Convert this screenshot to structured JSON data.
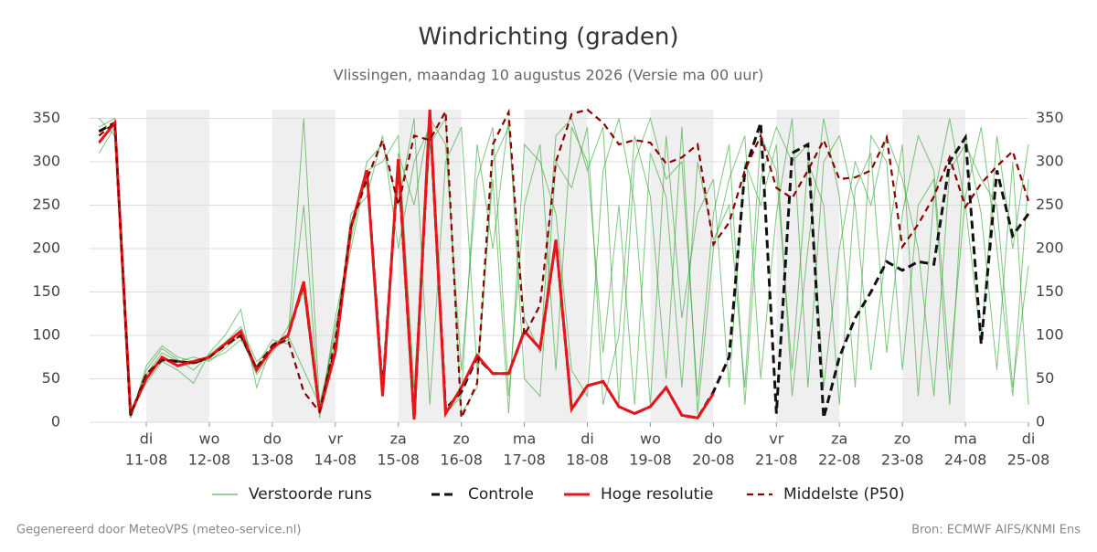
{
  "chart_data": {
    "type": "line",
    "title": "Windrichting (graden)",
    "subtitle": "Vlissingen, maandag 10 augustus 2026 (Versie ma 00 uur)",
    "footer_left": "Gegenereerd door MeteoVPS (meteo-service.nl)",
    "footer_right": "Bron: ECMWF AIFS/KNMI Ens",
    "xlim": [
      0.1,
      15
    ],
    "xticks": [
      {
        "value": 1,
        "label": "11-08"
      },
      {
        "value": 2,
        "label": "12-08"
      },
      {
        "value": 3,
        "label": "13-08"
      },
      {
        "value": 4,
        "label": "14-08"
      },
      {
        "value": 5,
        "label": "15-08"
      },
      {
        "value": 6,
        "label": "16-08"
      },
      {
        "value": 7,
        "label": "17-08"
      },
      {
        "value": 8,
        "label": "18-08"
      },
      {
        "value": 9,
        "label": "19-08"
      },
      {
        "value": 10,
        "label": "20-08"
      },
      {
        "value": 11,
        "label": "21-08"
      },
      {
        "value": 12,
        "label": "22-08"
      },
      {
        "value": 13,
        "label": "23-08"
      },
      {
        "value": 14,
        "label": "24-08"
      },
      {
        "value": 15,
        "label": "25-08"
      }
    ],
    "xtick_weekdays": [
      "di",
      "wo",
      "do",
      "vr",
      "za",
      "zo",
      "ma",
      "di",
      "wo",
      "do",
      "vr",
      "za",
      "zo",
      "ma",
      "di"
    ],
    "ylim": [
      0,
      360
    ],
    "yticks": [
      0,
      50,
      100,
      150,
      200,
      250,
      300,
      350
    ],
    "grid": true,
    "x": [
      0.25,
      0.5,
      0.75,
      1,
      1.25,
      1.5,
      1.75,
      2,
      2.25,
      2.5,
      2.75,
      3,
      3.25,
      3.5,
      3.75,
      4,
      4.25,
      4.5,
      4.75,
      5,
      5.25,
      5.5,
      5.75,
      6,
      6.25,
      6.5,
      6.75,
      7,
      7.25,
      7.5,
      7.75,
      8,
      8.25,
      8.5,
      8.75,
      9,
      9.25,
      9.5,
      9.75,
      10,
      10.25,
      10.5,
      10.75,
      11,
      11.25,
      11.5,
      11.75,
      12,
      12.25,
      12.5,
      12.75,
      13,
      13.25,
      13.5,
      13.75,
      14,
      14.25,
      14.5,
      14.75,
      15
    ],
    "series": [
      {
        "name": "Verstoorde runs",
        "color": "#2ca02c",
        "style": "thin",
        "values": [
          340,
          350,
          5,
          60,
          85,
          72,
          60,
          78,
          92,
          110,
          70,
          85,
          95,
          350,
          20,
          100,
          230,
          280,
          40,
          310,
          250,
          350,
          320,
          60,
          280,
          340,
          30,
          250,
          320,
          60,
          340,
          300,
          80,
          250,
          20,
          310,
          260,
          40,
          300,
          210,
          250,
          40,
          330,
          290,
          60,
          300,
          250,
          20,
          270,
          310,
          80,
          240,
          330,
          290,
          60,
          260,
          340,
          200,
          30,
          280
        ]
      },
      {
        "name": "Verstoorde runs",
        "color": "#2ca02c",
        "style": "thin",
        "values": [
          310,
          340,
          10,
          55,
          80,
          70,
          75,
          70,
          85,
          100,
          55,
          80,
          110,
          150,
          5,
          120,
          210,
          300,
          320,
          250,
          350,
          20,
          300,
          340,
          60,
          280,
          10,
          320,
          300,
          240,
          60,
          30,
          290,
          350,
          250,
          20,
          330,
          120,
          240,
          280,
          40,
          300,
          250,
          320,
          30,
          200,
          350,
          260,
          40,
          330,
          300,
          60,
          250,
          280,
          20,
          330,
          240,
          60,
          300,
          20
        ]
      },
      {
        "name": "Verstoorde runs",
        "color": "#2ca02c",
        "style": "thin",
        "values": [
          350,
          330,
          15,
          45,
          70,
          60,
          45,
          80,
          100,
          130,
          40,
          90,
          100,
          60,
          20,
          90,
          240,
          260,
          330,
          200,
          300,
          340,
          10,
          30,
          320,
          200,
          350,
          50,
          30,
          300,
          270,
          340,
          20,
          100,
          330,
          260,
          50,
          340,
          10,
          200,
          280,
          330,
          50,
          240,
          350,
          40,
          300,
          330,
          250,
          60,
          200,
          320,
          30,
          260,
          350,
          250,
          90,
          330,
          200,
          320
        ]
      },
      {
        "name": "Verstoorde runs",
        "color": "#2ca02c",
        "style": "thin",
        "values": [
          320,
          345,
          5,
          65,
          88,
          75,
          70,
          72,
          80,
          95,
          65,
          95,
          90,
          250,
          10,
          110,
          200,
          290,
          300,
          330,
          40,
          320,
          350,
          10,
          40,
          300,
          340,
          120,
          80,
          330,
          350,
          290,
          340,
          20,
          300,
          350,
          280,
          300,
          30,
          240,
          320,
          20,
          280,
          340,
          300,
          320,
          40,
          200,
          300,
          250,
          330,
          280,
          200,
          30,
          290,
          320,
          280,
          250,
          40,
          180
        ]
      },
      {
        "name": "Controle",
        "color": "#111111",
        "style": "dash",
        "values": [
          335,
          345,
          8,
          55,
          72,
          70,
          68,
          75,
          90,
          100,
          62,
          88,
          100,
          160,
          12,
          85,
          225,
          290,
          35,
          300,
          5,
          355,
          15,
          35,
          75,
          56,
          56,
          105,
          85,
          210,
          15,
          42,
          47,
          18,
          10,
          18,
          40,
          8,
          5,
          35,
          75,
          290,
          345,
          10,
          310,
          320,
          5,
          75,
          120,
          150,
          185,
          175,
          185,
          182,
          300,
          328,
          90,
          290,
          215,
          240
        ]
      },
      {
        "name": "Hoge resolutie",
        "color": "#e8151b",
        "style": "thick",
        "values": [
          322,
          345,
          10,
          50,
          75,
          65,
          70,
          75,
          90,
          105,
          60,
          85,
          100,
          162,
          12,
          80,
          225,
          290,
          30,
          303,
          3,
          360,
          10,
          40,
          77,
          56,
          56,
          105,
          85,
          210,
          15,
          42,
          47,
          18,
          10,
          18,
          40,
          8,
          5,
          33,
          null,
          null,
          null,
          null,
          null,
          null,
          null,
          null,
          null,
          null,
          null,
          null,
          null,
          null,
          null,
          null,
          null,
          null,
          null,
          null
        ]
      },
      {
        "name": "Middelste (P50)",
        "color": "#8b0000",
        "style": "dashthin",
        "values": [
          330,
          345,
          8,
          55,
          72,
          70,
          68,
          75,
          88,
          100,
          62,
          88,
          95,
          35,
          12,
          95,
          225,
          280,
          325,
          250,
          330,
          325,
          358,
          5,
          45,
          320,
          357,
          100,
          135,
          300,
          355,
          360,
          345,
          320,
          325,
          322,
          298,
          305,
          320,
          205,
          230,
          290,
          330,
          270,
          258,
          290,
          325,
          280,
          282,
          290,
          328,
          202,
          228,
          260,
          305,
          248,
          275,
          295,
          312,
          255
        ]
      }
    ]
  }
}
